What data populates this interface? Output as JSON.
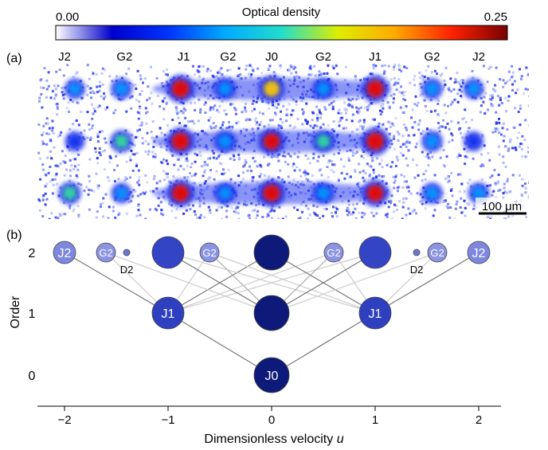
{
  "colorbar": {
    "title": "Optical density",
    "min_label": "0.00",
    "max_label": "0.25",
    "colormap": "jet",
    "colors": [
      "#ffffff",
      "#0000cc",
      "#0033ff",
      "#00aaff",
      "#22ddcc",
      "#ddee00",
      "#ffaa00",
      "#ff2200",
      "#7a0000"
    ]
  },
  "panel_a": {
    "label": "(a)",
    "column_labels": [
      {
        "text": "J2",
        "u": -2
      },
      {
        "text": "G2",
        "u": -1.42
      },
      {
        "text": "J1",
        "u": -0.85
      },
      {
        "text": "G2",
        "u": -0.42
      },
      {
        "text": "J0",
        "u": 0
      },
      {
        "text": "G2",
        "u": 0.5
      },
      {
        "text": "J1",
        "u": 1.0
      },
      {
        "text": "G2",
        "u": 1.55
      },
      {
        "text": "J2",
        "u": 2.0
      }
    ],
    "strip_count": 3,
    "scale_bar_label": "100 μm",
    "peaks": [
      [
        {
          "u": -1.9,
          "h": 0.4
        },
        {
          "u": -1.45,
          "h": 0.45
        },
        {
          "u": -0.88,
          "h": 1.0
        },
        {
          "u": -0.45,
          "h": 0.5
        },
        {
          "u": 0,
          "h": 0.85
        },
        {
          "u": 0.5,
          "h": 0.5
        },
        {
          "u": 1.0,
          "h": 0.95
        },
        {
          "u": 1.55,
          "h": 0.45
        },
        {
          "u": 1.95,
          "h": 0.4
        }
      ],
      [
        {
          "u": -1.9,
          "h": 0.35
        },
        {
          "u": -1.45,
          "h": 0.55
        },
        {
          "u": -0.88,
          "h": 1.0
        },
        {
          "u": -0.45,
          "h": 0.5
        },
        {
          "u": 0,
          "h": 0.9
        },
        {
          "u": 0.5,
          "h": 0.55
        },
        {
          "u": 1.0,
          "h": 1.0
        },
        {
          "u": 1.55,
          "h": 0.45
        },
        {
          "u": 1.95,
          "h": 0.35
        }
      ],
      [
        {
          "u": -1.95,
          "h": 0.55
        },
        {
          "u": -1.45,
          "h": 0.4
        },
        {
          "u": -0.88,
          "h": 0.95
        },
        {
          "u": -0.45,
          "h": 0.45
        },
        {
          "u": 0,
          "h": 0.95
        },
        {
          "u": 0.5,
          "h": 0.5
        },
        {
          "u": 1.0,
          "h": 0.9
        },
        {
          "u": 1.55,
          "h": 0.45
        },
        {
          "u": 2.0,
          "h": 0.45
        }
      ]
    ]
  },
  "panel_b": {
    "label": "(b)",
    "ylabel": "Order",
    "xlabel_text": "Dimensionless velocity ",
    "xlabel_var": "u",
    "x_ticks": [
      -2,
      -1,
      0,
      1,
      2
    ],
    "x_tick_labels": [
      "−2",
      "−1",
      "0",
      "1",
      "2"
    ],
    "y_ticks": [
      0,
      1,
      2
    ],
    "y_tick_labels": [
      "0",
      "1",
      "2"
    ],
    "xlim": [
      -2.2,
      2.2
    ],
    "nodes": [
      {
        "label": "J0",
        "u": 0,
        "order": 0,
        "size": "large",
        "color": "#0d1a7a"
      },
      {
        "label": "J1",
        "u": -1,
        "order": 1,
        "size": "medium",
        "color": "#2e3fc0"
      },
      {
        "label": "",
        "u": 0,
        "order": 1,
        "size": "large",
        "color": "#0d1a7a"
      },
      {
        "label": "J1",
        "u": 1,
        "order": 1,
        "size": "medium",
        "color": "#2e3fc0"
      },
      {
        "label": "J2",
        "u": -2,
        "order": 2,
        "size": "small",
        "color": "#7d87e0"
      },
      {
        "label": "G2",
        "u": -1.6,
        "order": 2,
        "size": "xsmall",
        "color": "#8a93e4"
      },
      {
        "label": "D2",
        "u": -1.4,
        "order": 2,
        "size": "dot",
        "color": "#6a74dd"
      },
      {
        "label": "",
        "u": -1,
        "order": 2,
        "size": "medium",
        "color": "#3344c4"
      },
      {
        "label": "G2",
        "u": -0.6,
        "order": 2,
        "size": "xsmall",
        "color": "#8a93e4"
      },
      {
        "label": "",
        "u": 0,
        "order": 2,
        "size": "large",
        "color": "#0d1a7a"
      },
      {
        "label": "G2",
        "u": 0.6,
        "order": 2,
        "size": "xsmall",
        "color": "#8a93e4"
      },
      {
        "label": "",
        "u": 1,
        "order": 2,
        "size": "medium",
        "color": "#3344c4"
      },
      {
        "label": "D2",
        "u": 1.4,
        "order": 2,
        "size": "dot",
        "color": "#6a74dd"
      },
      {
        "label": "G2",
        "u": 1.6,
        "order": 2,
        "size": "xsmall",
        "color": "#8a93e4"
      },
      {
        "label": "J2",
        "u": 2,
        "order": 2,
        "size": "small",
        "color": "#7d87e0"
      }
    ],
    "edges": [
      {
        "from": [
          0,
          0
        ],
        "to": [
          -1,
          1
        ],
        "shade": "dark"
      },
      {
        "from": [
          0,
          0
        ],
        "to": [
          1,
          1
        ],
        "shade": "dark"
      },
      {
        "from": [
          -1,
          1
        ],
        "to": [
          -2,
          2
        ],
        "shade": "dark"
      },
      {
        "from": [
          -1,
          1
        ],
        "to": [
          -1.6,
          2
        ],
        "shade": "light"
      },
      {
        "from": [
          -1,
          1
        ],
        "to": [
          -0.6,
          2
        ],
        "shade": "light"
      },
      {
        "from": [
          -1,
          1
        ],
        "to": [
          0,
          2
        ],
        "shade": "dark"
      },
      {
        "from": [
          -1,
          1
        ],
        "to": [
          0.6,
          2
        ],
        "shade": "light"
      },
      {
        "from": [
          -1,
          1
        ],
        "to": [
          1,
          2
        ],
        "shade": "light"
      },
      {
        "from": [
          1,
          1
        ],
        "to": [
          2,
          2
        ],
        "shade": "dark"
      },
      {
        "from": [
          1,
          1
        ],
        "to": [
          1.6,
          2
        ],
        "shade": "light"
      },
      {
        "from": [
          1,
          1
        ],
        "to": [
          0.6,
          2
        ],
        "shade": "light"
      },
      {
        "from": [
          1,
          1
        ],
        "to": [
          0,
          2
        ],
        "shade": "dark"
      },
      {
        "from": [
          1,
          1
        ],
        "to": [
          -0.6,
          2
        ],
        "shade": "light"
      },
      {
        "from": [
          1,
          1
        ],
        "to": [
          -1,
          2
        ],
        "shade": "light"
      },
      {
        "from": [
          0,
          1
        ],
        "to": [
          -1,
          2
        ],
        "shade": "dark"
      },
      {
        "from": [
          0,
          1
        ],
        "to": [
          1,
          2
        ],
        "shade": "dark"
      },
      {
        "from": [
          0,
          1
        ],
        "to": [
          -0.6,
          2
        ],
        "shade": "medium"
      },
      {
        "from": [
          0,
          1
        ],
        "to": [
          0.6,
          2
        ],
        "shade": "medium"
      },
      {
        "from": [
          0,
          1
        ],
        "to": [
          -1.6,
          2
        ],
        "shade": "light"
      },
      {
        "from": [
          0,
          1
        ],
        "to": [
          1.6,
          2
        ],
        "shade": "light"
      }
    ]
  }
}
